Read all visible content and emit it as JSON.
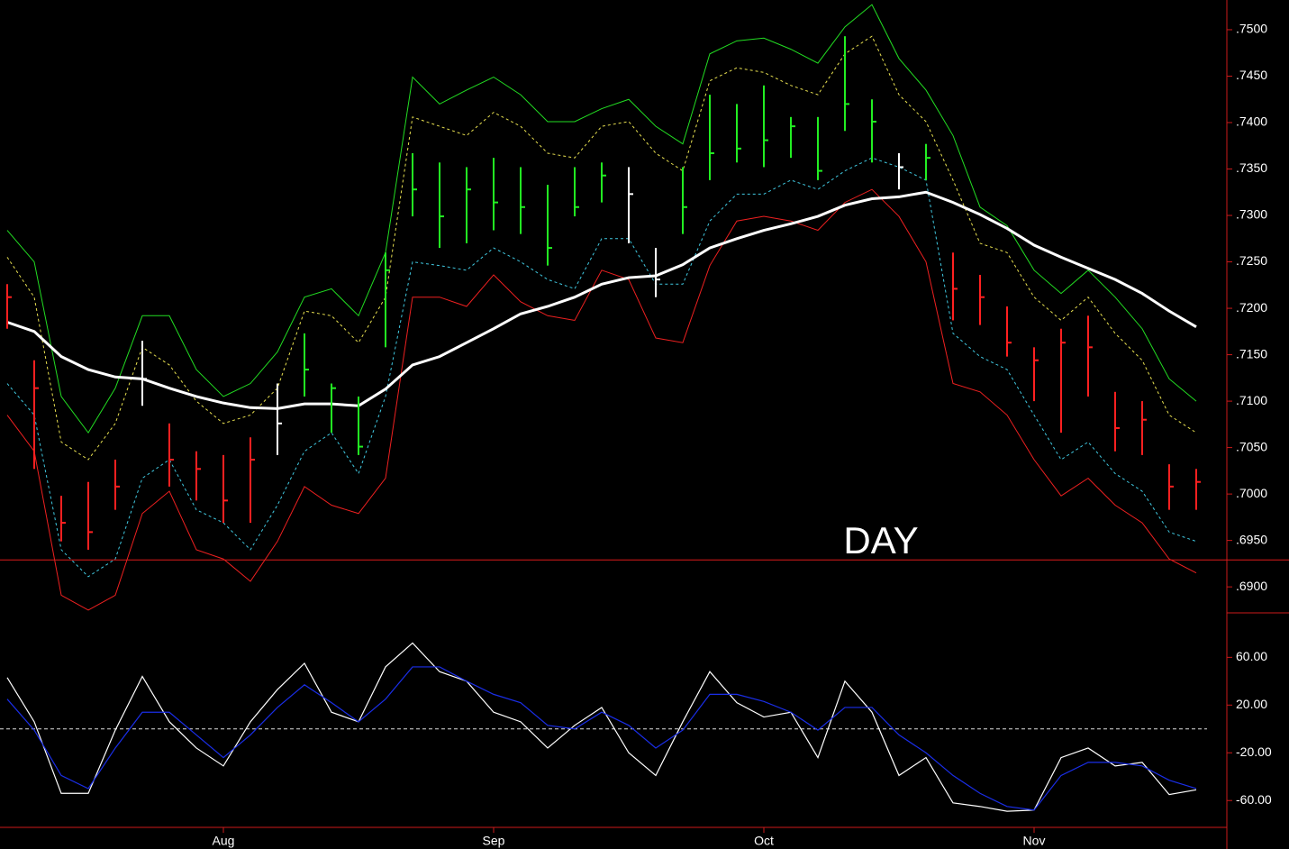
{
  "chart_data": [
    {
      "type": "ohlc",
      "annotation": "DAY",
      "high": [
        0.7226,
        0.7144,
        0.6998,
        0.7013,
        0.7037,
        0.7165,
        0.7076,
        0.7046,
        0.7042,
        0.7061,
        0.7119,
        0.7173,
        0.7119,
        0.7105,
        0.726,
        0.7367,
        0.7357,
        0.7352,
        0.7362,
        0.7352,
        0.7333,
        0.7352,
        0.7357,
        0.7352,
        0.7265,
        0.7352,
        0.743,
        0.742,
        0.744,
        0.7406,
        0.7406,
        0.7493,
        0.7425,
        0.7367,
        0.7377,
        0.726,
        0.7236,
        0.7202,
        0.7158,
        0.7178,
        0.7192,
        0.711,
        0.71,
        0.7032,
        0.7027
      ],
      "low": [
        0.7178,
        0.7027,
        0.6949,
        0.694,
        0.6983,
        0.7095,
        0.7008,
        0.6993,
        0.6969,
        0.6969,
        0.7042,
        0.7105,
        0.7066,
        0.7042,
        0.7158,
        0.7299,
        0.7265,
        0.727,
        0.7284,
        0.728,
        0.7246,
        0.7299,
        0.7314,
        0.727,
        0.7212,
        0.728,
        0.7338,
        0.7357,
        0.7352,
        0.7362,
        0.7338,
        0.7391,
        0.7357,
        0.7328,
        0.7338,
        0.7187,
        0.7182,
        0.7148,
        0.71,
        0.7066,
        0.7105,
        0.7046,
        0.7042,
        0.6983,
        0.6983
      ],
      "close": [
        0.7212,
        0.7114,
        0.6969,
        0.6959,
        0.7008,
        0.7124,
        0.7037,
        0.7027,
        0.6993,
        0.7037,
        0.7076,
        0.7134,
        0.7114,
        0.7051,
        0.7241,
        0.7328,
        0.7299,
        0.7328,
        0.7314,
        0.7309,
        0.7265,
        0.7309,
        0.7343,
        0.7323,
        0.7231,
        0.7309,
        0.7367,
        0.7372,
        0.7381,
        0.7396,
        0.7348,
        0.742,
        0.7401,
        0.7352,
        0.7362,
        0.7221,
        0.7212,
        0.7163,
        0.7144,
        0.7163,
        0.7158,
        0.7071,
        0.708,
        0.7008,
        0.7013
      ],
      "bar_colors": [
        "#ff2020",
        "#ff2020",
        "#ff2020",
        "#ff2020",
        "#ff2020",
        "#ffffff",
        "#ff2020",
        "#ff2020",
        "#ff2020",
        "#ff2020",
        "#ffffff",
        "#22ee22",
        "#22ee22",
        "#22ee22",
        "#22ee22",
        "#22ee22",
        "#22ee22",
        "#22ee22",
        "#22ee22",
        "#22ee22",
        "#22ee22",
        "#22ee22",
        "#22ee22",
        "#ffffff",
        "#ffffff",
        "#22ee22",
        "#22ee22",
        "#22ee22",
        "#22ee22",
        "#22ee22",
        "#22ee22",
        "#22ee22",
        "#22ee22",
        "#ffffff",
        "#22ee22",
        "#ff2020",
        "#ff2020",
        "#ff2020",
        "#ff2020",
        "#ff2020",
        "#ff2020",
        "#ff2020",
        "#ff2020",
        "#ff2020",
        "#ff2020"
      ],
      "series": [
        {
          "color": "#22dd22",
          "dashed": false,
          "width": 1,
          "values": [
            0.7284,
            0.725,
            0.7105,
            0.7066,
            0.7114,
            0.7192,
            0.7192,
            0.7134,
            0.7105,
            0.7119,
            0.7153,
            0.7212,
            0.7221,
            0.7192,
            0.726,
            0.7449,
            0.742,
            0.7435,
            0.7449,
            0.743,
            0.7401,
            0.7401,
            0.7415,
            0.7425,
            0.7396,
            0.7377,
            0.7474,
            0.7488,
            0.7491,
            0.7479,
            0.7464,
            0.7503,
            0.7527,
            0.7469,
            0.7435,
            0.7386,
            0.7309,
            0.7289,
            0.7241,
            0.7216,
            0.7241,
            0.7212,
            0.7178,
            0.7124,
            0.71
          ]
        },
        {
          "color": "#e8e050",
          "dashed": true,
          "width": 1,
          "values": [
            0.7255,
            0.7212,
            0.7056,
            0.7037,
            0.7076,
            0.7158,
            0.7139,
            0.71,
            0.7076,
            0.7085,
            0.7114,
            0.7197,
            0.7192,
            0.7163,
            0.7212,
            0.7406,
            0.7396,
            0.7386,
            0.7411,
            0.7396,
            0.7367,
            0.7362,
            0.7396,
            0.7401,
            0.7367,
            0.7348,
            0.7445,
            0.7459,
            0.7454,
            0.744,
            0.743,
            0.7474,
            0.7493,
            0.743,
            0.7401,
            0.7338,
            0.727,
            0.726,
            0.7212,
            0.7187,
            0.7212,
            0.7173,
            0.7144,
            0.7085,
            0.7066
          ]
        },
        {
          "color": "#40c8e0",
          "dashed": true,
          "width": 1,
          "values": [
            0.7119,
            0.7085,
            0.694,
            0.6911,
            0.693,
            0.7017,
            0.7037,
            0.6983,
            0.6969,
            0.694,
            0.6988,
            0.7046,
            0.7066,
            0.7022,
            0.7105,
            0.725,
            0.7246,
            0.7241,
            0.7265,
            0.725,
            0.7231,
            0.7221,
            0.7275,
            0.7275,
            0.7226,
            0.7226,
            0.7294,
            0.7323,
            0.7323,
            0.7338,
            0.7328,
            0.7348,
            0.7362,
            0.7352,
            0.7338,
            0.7173,
            0.7148,
            0.7134,
            0.7085,
            0.7037,
            0.7056,
            0.7022,
            0.7003,
            0.6959,
            0.6949
          ]
        },
        {
          "color": "#ee2020",
          "dashed": false,
          "width": 1,
          "values": [
            0.7085,
            0.7046,
            0.6891,
            0.6875,
            0.6891,
            0.6979,
            0.7003,
            0.694,
            0.693,
            0.6906,
            0.6949,
            0.7008,
            0.6988,
            0.6979,
            0.7017,
            0.7212,
            0.7212,
            0.7202,
            0.7236,
            0.7207,
            0.7192,
            0.7187,
            0.7241,
            0.7231,
            0.7168,
            0.7163,
            0.7246,
            0.7294,
            0.7299,
            0.7294,
            0.7284,
            0.7314,
            0.7328,
            0.7299,
            0.725,
            0.7119,
            0.711,
            0.7085,
            0.7037,
            0.6998,
            0.7017,
            0.6988,
            0.6969,
            0.693,
            0.6915
          ]
        },
        {
          "color": "#ffffff",
          "dashed": false,
          "width": 3,
          "values": [
            0.7185,
            0.7175,
            0.7148,
            0.7134,
            0.7126,
            0.7124,
            0.7114,
            0.7105,
            0.7098,
            0.7093,
            0.7092,
            0.7097,
            0.7097,
            0.7095,
            0.7113,
            0.7139,
            0.7148,
            0.7163,
            0.7178,
            0.7194,
            0.7202,
            0.7212,
            0.7226,
            0.7233,
            0.7235,
            0.7247,
            0.7265,
            0.7275,
            0.7284,
            0.7291,
            0.7299,
            0.7311,
            0.7318,
            0.732,
            0.7325,
            0.7314,
            0.7301,
            0.7286,
            0.7268,
            0.7255,
            0.7243,
            0.7231,
            0.7216,
            0.7197,
            0.718
          ]
        }
      ],
      "hline": 0.6929,
      "hline_color": "#dd1a1a",
      "ylim": [
        0.6872,
        0.7532
      ],
      "yticks": [
        {
          "value": 0.69,
          "label": ".6900"
        },
        {
          "value": 0.695,
          "label": ".6950"
        },
        {
          "value": 0.7,
          "label": ".7000"
        },
        {
          "value": 0.705,
          "label": ".7050"
        },
        {
          "value": 0.71,
          "label": ".7100"
        },
        {
          "value": 0.715,
          "label": ".7150"
        },
        {
          "value": 0.72,
          "label": ".7200"
        },
        {
          "value": 0.725,
          "label": ".7250"
        },
        {
          "value": 0.73,
          "label": ".7300"
        },
        {
          "value": 0.735,
          "label": ".7350"
        },
        {
          "value": 0.74,
          "label": ".7400"
        },
        {
          "value": 0.745,
          "label": ".7450"
        },
        {
          "value": 0.75,
          "label": ".7500"
        }
      ]
    },
    {
      "type": "line",
      "categories": [
        null,
        null,
        null,
        null,
        null,
        null,
        null,
        null,
        "Aug",
        null,
        null,
        null,
        null,
        null,
        null,
        null,
        null,
        null,
        "Sep",
        null,
        null,
        null,
        null,
        null,
        null,
        null,
        null,
        null,
        "Oct",
        null,
        null,
        null,
        null,
        null,
        null,
        null,
        null,
        null,
        "Nov",
        null,
        null,
        null,
        null,
        null,
        null
      ],
      "series": [
        {
          "color": "#ffffff",
          "values": [
            43,
            6,
            -54,
            -54,
            -1,
            44,
            6,
            -16,
            -31,
            6,
            33,
            55,
            14,
            6,
            52,
            72,
            48,
            40,
            14,
            6,
            -16,
            3,
            18,
            -20,
            -39,
            6,
            48,
            22,
            10,
            14,
            -24,
            40,
            14,
            -39,
            -24,
            -62,
            -65,
            -69,
            -68,
            -24,
            -16,
            -31,
            -28,
            -55,
            -51
          ]
        },
        {
          "color": "#1a2ee8",
          "values": [
            25,
            -1,
            -39,
            -50,
            -16,
            14,
            14,
            -5,
            -24,
            -5,
            18,
            37,
            22,
            6,
            25,
            52,
            52,
            40,
            29,
            22,
            3,
            0,
            14,
            3,
            -16,
            -1,
            29,
            29,
            23,
            14,
            -1,
            18,
            18,
            -5,
            -20,
            -39,
            -54,
            -65,
            -68,
            -39,
            -28,
            -28,
            -31,
            -43,
            -50
          ]
        }
      ],
      "zero_line": 0,
      "ylim": [
        -84,
        95
      ],
      "yticks": [
        {
          "value": 60,
          "label": "60.00"
        },
        {
          "value": 20,
          "label": "20.00"
        },
        {
          "value": -20,
          "label": "-20.00"
        },
        {
          "value": -60,
          "label": "-60.00"
        }
      ]
    }
  ]
}
